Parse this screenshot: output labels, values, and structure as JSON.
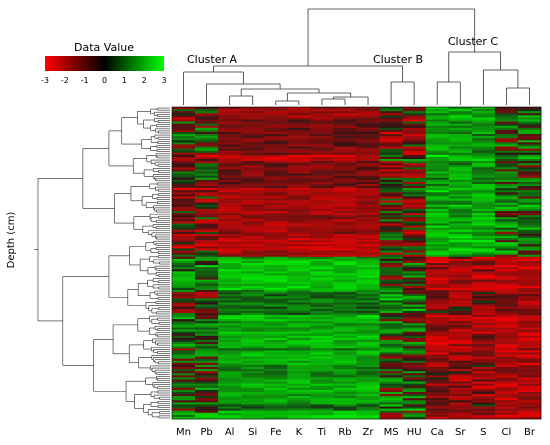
{
  "chart_data": {
    "type": "heatmap",
    "title": "",
    "legend": {
      "title": "Data Value",
      "ticks": [
        "-3",
        "-2",
        "-1",
        "0",
        "1",
        "2",
        "3"
      ],
      "min": -3,
      "max": 3,
      "colors": {
        "low": "#ff0000",
        "mid": "#000000",
        "high": "#00ff00"
      }
    },
    "ylabel": "Depth (cm)",
    "columns": [
      "Mn",
      "Pb",
      "Al",
      "Si",
      "Fe",
      "K",
      "Ti",
      "Rb",
      "Zr",
      "MS",
      "HU",
      "Ca",
      "Sr",
      "S",
      "Cl",
      "Br"
    ],
    "clusters": [
      "Cluster A",
      "Cluster B",
      "Cluster C"
    ],
    "grid": false
  }
}
